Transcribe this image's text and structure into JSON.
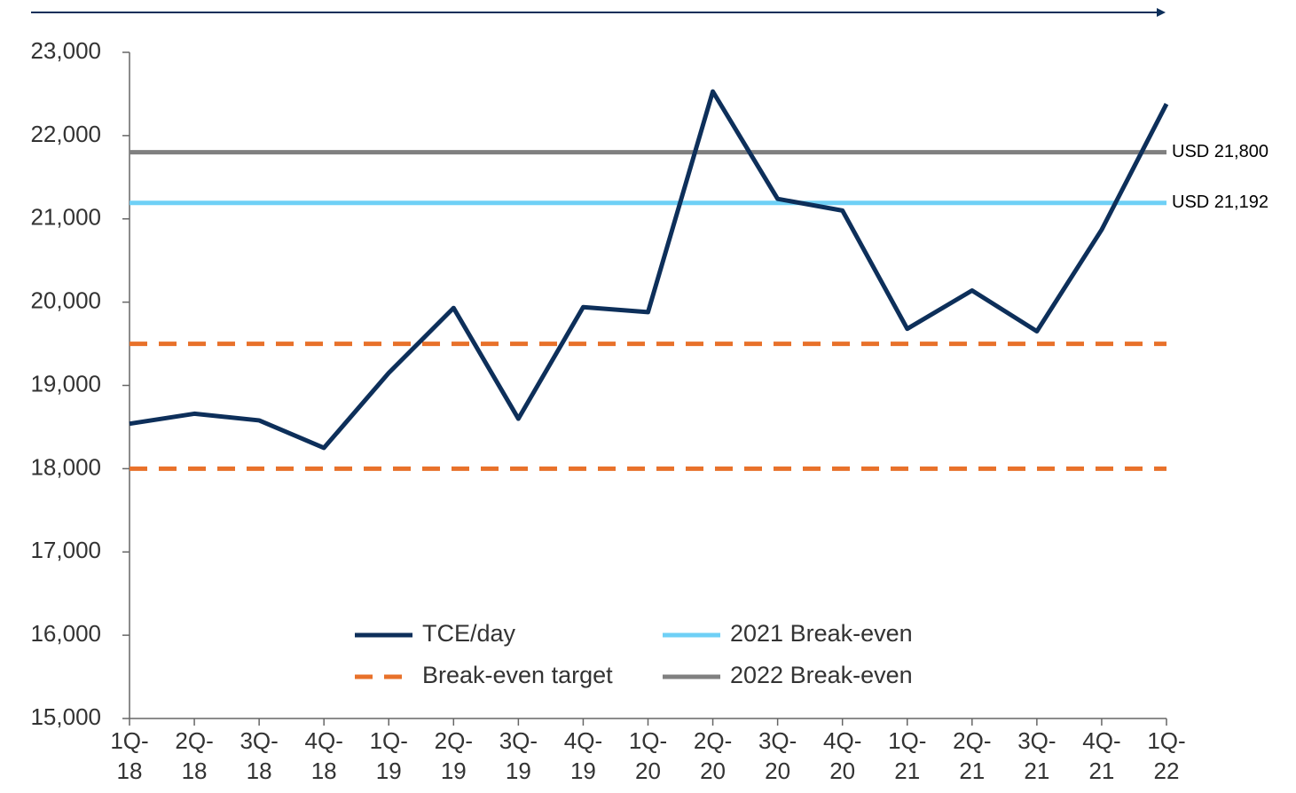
{
  "chart_data": {
    "type": "line",
    "categories": [
      "1Q-18",
      "2Q-18",
      "3Q-18",
      "4Q-18",
      "1Q-19",
      "2Q-19",
      "3Q-19",
      "4Q-19",
      "1Q-20",
      "2Q-20",
      "3Q-20",
      "4Q-20",
      "1Q-21",
      "2Q-21",
      "3Q-21",
      "4Q-21",
      "1Q-22"
    ],
    "series": [
      {
        "name": "TCE/day",
        "color": "#0d2f5a",
        "values": [
          18540,
          18660,
          18580,
          18250,
          19150,
          19930,
          18600,
          19940,
          19880,
          22530,
          21240,
          21100,
          19680,
          20140,
          19650,
          20870,
          22380
        ]
      }
    ],
    "reference_lines": [
      {
        "name": "Break-even target",
        "color": "#e8712a",
        "dashed": true,
        "values": [
          19500,
          18000
        ]
      },
      {
        "name": "2021 Break-even",
        "color": "#6fd0f6",
        "values": [
          21192
        ],
        "value_labels": [
          "USD 21,192"
        ]
      },
      {
        "name": "2022 Break-even",
        "color": "#808080",
        "values": [
          21800
        ],
        "value_labels": [
          "USD 21,800"
        ]
      }
    ],
    "ylim": [
      15000,
      23000
    ],
    "yticks": [
      {
        "value": 15000,
        "label": "15,000"
      },
      {
        "value": 16000,
        "label": "16,000"
      },
      {
        "value": 17000,
        "label": "17,000"
      },
      {
        "value": 18000,
        "label": "18,000"
      },
      {
        "value": 19000,
        "label": "19,000"
      },
      {
        "value": 20000,
        "label": "20,000"
      },
      {
        "value": 21000,
        "label": "21,000"
      },
      {
        "value": 22000,
        "label": "22,000"
      },
      {
        "value": 23000,
        "label": "23,000"
      }
    ],
    "grid": false
  }
}
